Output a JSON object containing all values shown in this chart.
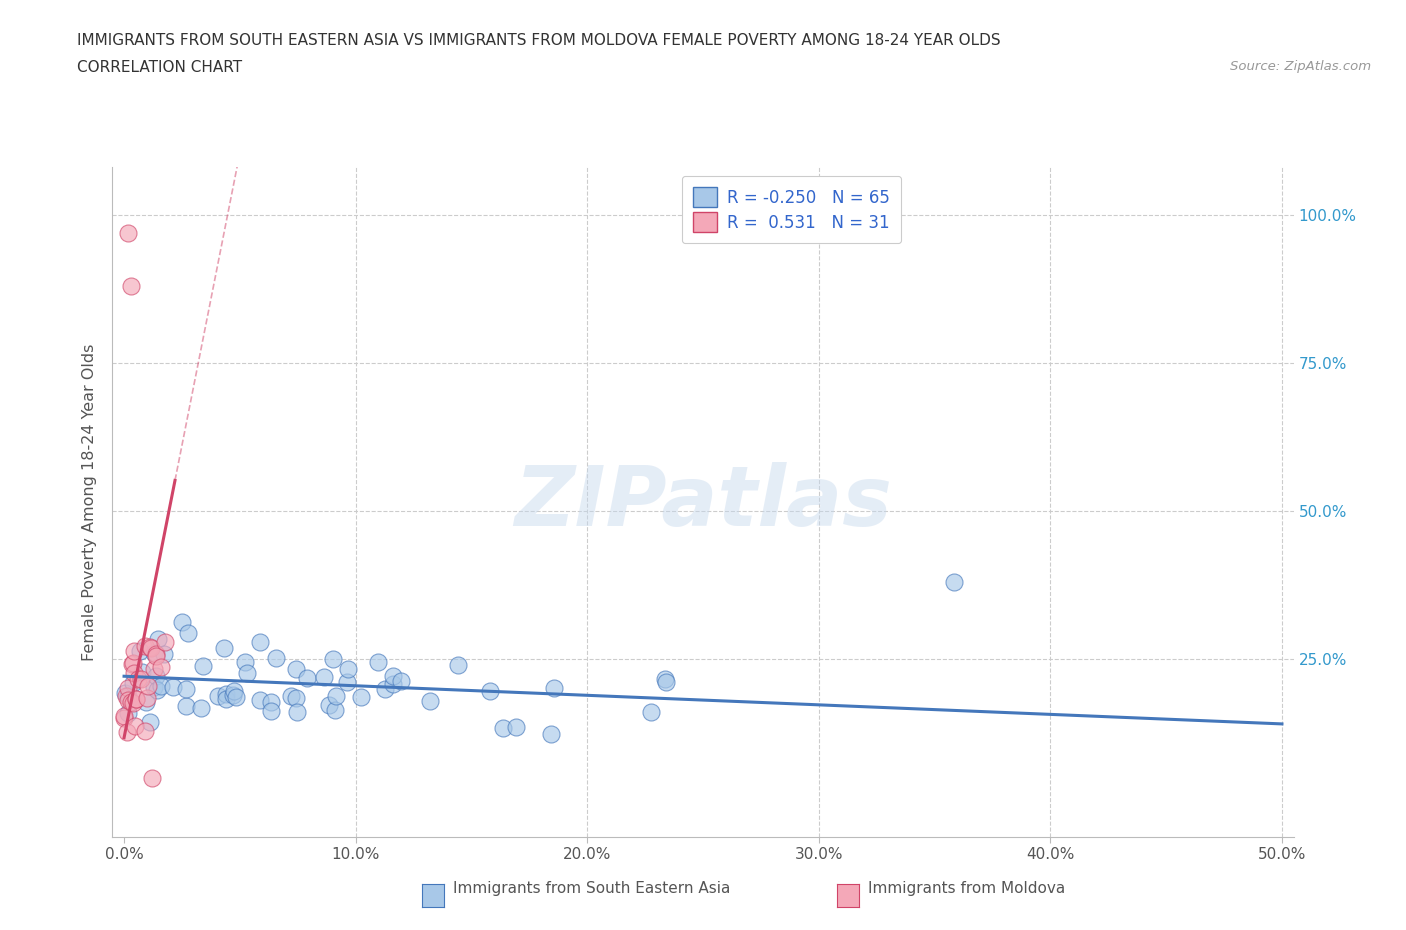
{
  "title_line1": "IMMIGRANTS FROM SOUTH EASTERN ASIA VS IMMIGRANTS FROM MOLDOVA FEMALE POVERTY AMONG 18-24 YEAR OLDS",
  "title_line2": "CORRELATION CHART",
  "source_text": "Source: ZipAtlas.com",
  "ylabel": "Female Poverty Among 18-24 Year Olds",
  "watermark": "ZIPatlas",
  "color_sea": "#a8c8e8",
  "color_moldova": "#f4a8b8",
  "line_color_sea": "#4477bb",
  "line_color_moldova": "#d04468",
  "R_sea": -0.25,
  "N_sea": 65,
  "R_moldova": 0.531,
  "N_moldova": 31,
  "legend_label1": "R = -0.250   N = 65",
  "legend_label2": "R =  0.531   N = 31",
  "bottom_label1": "Immigrants from South Eastern Asia",
  "bottom_label2": "Immigrants from Moldova",
  "xtick_labels": [
    "0.0%",
    "10.0%",
    "20.0%",
    "30.0%",
    "40.0%",
    "50.0%"
  ],
  "xtick_values": [
    0.0,
    0.1,
    0.2,
    0.3,
    0.4,
    0.5
  ],
  "ytick_values": [
    0.25,
    0.5,
    0.75,
    1.0
  ],
  "ytick_labels": [
    "25.0%",
    "50.0%",
    "75.0%",
    "100.0%"
  ],
  "xlim": [
    -0.005,
    0.505
  ],
  "ylim": [
    -0.05,
    1.08
  ]
}
